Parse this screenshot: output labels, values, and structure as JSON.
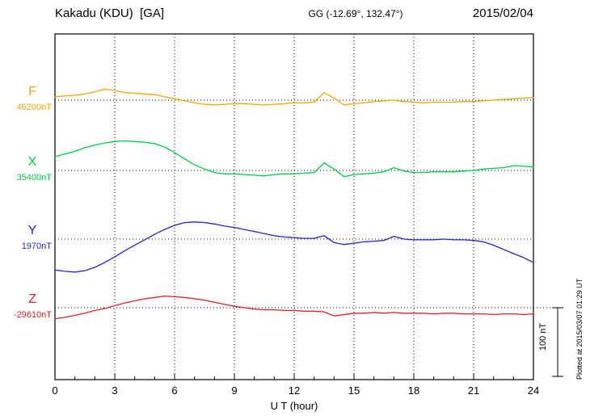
{
  "header": {
    "title": "Kakadu (KDU)  [GA]",
    "coords": "GG (-12.69°, 132.47°)",
    "date": "2015/02/04"
  },
  "side_note": "Plotted at 2015/03/07 01:29 UT",
  "scale_bar": {
    "label": "100 nT",
    "nT": 100
  },
  "x_axis": {
    "label": "U T (hour)",
    "min": 0,
    "max": 24,
    "ticks": [
      0,
      3,
      6,
      9,
      12,
      15,
      18,
      21,
      24
    ]
  },
  "chart_data": {
    "type": "line",
    "title": "Kakadu (KDU) [GA] magnetogram 2015/02/04",
    "xlabel": "U T (hour)",
    "x_range": [
      0,
      24
    ],
    "x_step_hours": 0.5,
    "grid": "dotted vertical lines every 3 hours; dotted horizontal baseline per component",
    "scale_bar_nT": 100,
    "series": [
      {
        "name": "F",
        "baseline_label": "46200nT",
        "baseline_nT": 46200,
        "color": "#f0a500",
        "offsets_nT": [
          5,
          6,
          7,
          9,
          12,
          16,
          14,
          11,
          10,
          9,
          8,
          5,
          2,
          -1,
          -4,
          -6,
          -7,
          -6,
          -5,
          -5,
          -6,
          -7,
          -6,
          -5,
          -4,
          -4,
          -3,
          11,
          3,
          -7,
          -5,
          -4,
          -2,
          -1,
          0,
          -2,
          -3,
          -4,
          -3,
          -3,
          -3,
          -2,
          -2,
          -1,
          0,
          1,
          2,
          3,
          4
        ]
      },
      {
        "name": "X",
        "baseline_label": "35400nT",
        "baseline_nT": 35400,
        "color": "#00cc44",
        "offsets_nT": [
          20,
          24,
          28,
          33,
          37,
          40,
          42,
          43,
          42,
          41,
          39,
          34,
          26,
          17,
          8,
          2,
          -3,
          -5,
          -5,
          -6,
          -7,
          -8,
          -6,
          -5,
          -5,
          -4,
          -3,
          11,
          2,
          -9,
          -6,
          -5,
          -4,
          -2,
          4,
          -1,
          -3,
          -3,
          -2,
          -2,
          -2,
          -1,
          0,
          2,
          3,
          4,
          7,
          6,
          5
        ]
      },
      {
        "name": "Y",
        "baseline_label": "1970nT",
        "baseline_nT": 1970,
        "color": "#2222cc",
        "offsets_nT": [
          -45,
          -47,
          -48,
          -46,
          -41,
          -34,
          -26,
          -17,
          -9,
          -1,
          7,
          14,
          20,
          24,
          25,
          24,
          22,
          19,
          17,
          14,
          11,
          8,
          5,
          3,
          2,
          1,
          1,
          5,
          -5,
          -8,
          -6,
          -4,
          -3,
          -2,
          4,
          0,
          -1,
          -1,
          -1,
          0,
          -1,
          -1,
          -2,
          -4,
          -9,
          -15,
          -21,
          -27,
          -34
        ]
      },
      {
        "name": "Z",
        "baseline_label": "-29610nT",
        "baseline_nT": -29610,
        "color": "#e02020",
        "offsets_nT": [
          -16,
          -14,
          -11,
          -8,
          -4,
          -1,
          3,
          7,
          10,
          13,
          15,
          17,
          16,
          15,
          13,
          11,
          8,
          5,
          2,
          0,
          -2,
          -3,
          -3,
          -4,
          -4,
          -5,
          -5,
          -6,
          -12,
          -10,
          -8,
          -8,
          -7,
          -8,
          -7,
          -8,
          -8,
          -8,
          -9,
          -8,
          -8,
          -9,
          -9,
          -9,
          -10,
          -9,
          -9,
          -10,
          -9
        ]
      }
    ]
  }
}
